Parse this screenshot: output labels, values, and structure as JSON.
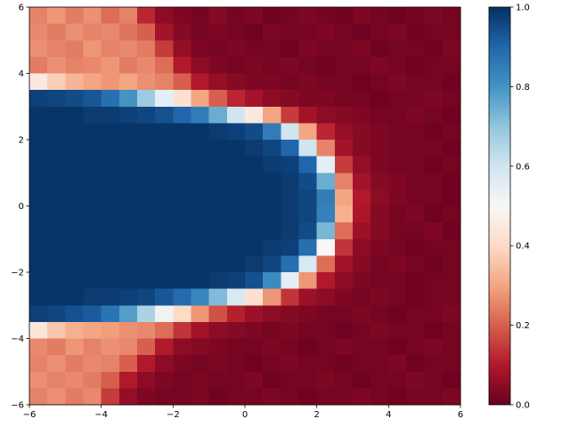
{
  "chart_data": {
    "type": "heatmap",
    "xlim": [
      -6,
      6
    ],
    "ylim": [
      -6,
      6
    ],
    "xticks": [
      {
        "value": -6,
        "label": "−6"
      },
      {
        "value": -4,
        "label": "−4"
      },
      {
        "value": -2,
        "label": "−2"
      },
      0,
      2,
      4,
      6
    ],
    "yticks": [
      {
        "value": -6,
        "label": "−6"
      },
      {
        "value": -4,
        "label": "−4"
      },
      {
        "value": -2,
        "label": "−2"
      },
      0,
      2,
      4,
      6
    ],
    "colorbar_lim": [
      0,
      1
    ],
    "colorbar_ticks": [
      {
        "value": 0,
        "label": "0.0"
      },
      0.2,
      0.4,
      0.6,
      0.8,
      {
        "value": 1,
        "label": "1.0"
      }
    ],
    "colormap": [
      "#67001f",
      "#b2182b",
      "#d6604d",
      "#f4a582",
      "#fddbc7",
      "#f7f7f7",
      "#d1e5f0",
      "#92c5de",
      "#4393c3",
      "#2166ac",
      "#053061"
    ],
    "x": [
      -5.75,
      -5.25,
      -4.75,
      -4.25,
      -3.75,
      -3.25,
      -2.75,
      -2.25,
      -1.75,
      -1.25,
      -0.75,
      -0.25,
      0.25,
      0.75,
      1.25,
      1.75,
      2.25,
      2.75,
      3.25,
      3.75,
      4.25,
      4.75,
      5.25,
      5.75
    ],
    "y": [
      5.75,
      5.25,
      4.75,
      4.25,
      3.75,
      3.25,
      2.75,
      2.25,
      1.75,
      1.25,
      0.75,
      0.25,
      -0.25,
      -0.75,
      -1.25,
      -1.75,
      -2.25,
      -2.75,
      -3.25,
      -3.75,
      -4.25,
      -4.75,
      -5.25,
      -5.75
    ],
    "values": [
      [
        0.25,
        0.28,
        0.24,
        0.27,
        0.22,
        0.25,
        0.12,
        0.05,
        0.03,
        0.02,
        0.04,
        0.02,
        0.03,
        0.01,
        0.02,
        0.03,
        0.02,
        0.01,
        0.03,
        0.02,
        0.01,
        0.02,
        0.03,
        0.02
      ],
      [
        0.26,
        0.24,
        0.27,
        0.25,
        0.26,
        0.23,
        0.2,
        0.08,
        0.04,
        0.02,
        0.03,
        0.02,
        0.01,
        0.03,
        0.02,
        0.02,
        0.03,
        0.02,
        0.01,
        0.02,
        0.03,
        0.01,
        0.02,
        0.02
      ],
      [
        0.27,
        0.25,
        0.24,
        0.28,
        0.25,
        0.26,
        0.24,
        0.15,
        0.06,
        0.03,
        0.02,
        0.03,
        0.02,
        0.02,
        0.01,
        0.03,
        0.02,
        0.02,
        0.03,
        0.01,
        0.02,
        0.02,
        0.01,
        0.03
      ],
      [
        0.24,
        0.27,
        0.25,
        0.26,
        0.28,
        0.24,
        0.26,
        0.22,
        0.1,
        0.05,
        0.03,
        0.02,
        0.03,
        0.02,
        0.03,
        0.02,
        0.01,
        0.02,
        0.02,
        0.03,
        0.02,
        0.01,
        0.02,
        0.02
      ],
      [
        0.45,
        0.38,
        0.33,
        0.3,
        0.28,
        0.3,
        0.27,
        0.25,
        0.2,
        0.1,
        0.06,
        0.04,
        0.03,
        0.03,
        0.02,
        0.03,
        0.02,
        0.02,
        0.01,
        0.02,
        0.03,
        0.02,
        0.02,
        0.01
      ],
      [
        0.97,
        0.96,
        0.95,
        0.93,
        0.88,
        0.8,
        0.68,
        0.55,
        0.42,
        0.3,
        0.2,
        0.12,
        0.08,
        0.05,
        0.04,
        0.03,
        0.03,
        0.02,
        0.02,
        0.01,
        0.02,
        0.02,
        0.03,
        0.02
      ],
      [
        0.99,
        0.99,
        0.99,
        0.98,
        0.98,
        0.97,
        0.96,
        0.94,
        0.9,
        0.85,
        0.75,
        0.6,
        0.45,
        0.3,
        0.15,
        0.08,
        0.05,
        0.04,
        0.03,
        0.02,
        0.02,
        0.03,
        0.02,
        0.01
      ],
      [
        0.99,
        0.99,
        0.99,
        0.99,
        0.99,
        0.99,
        0.99,
        0.99,
        0.99,
        0.99,
        0.98,
        0.97,
        0.95,
        0.85,
        0.6,
        0.3,
        0.12,
        0.06,
        0.04,
        0.03,
        0.02,
        0.02,
        0.01,
        0.02
      ],
      [
        0.99,
        0.99,
        0.99,
        0.99,
        0.99,
        0.99,
        0.99,
        0.99,
        0.99,
        0.99,
        0.99,
        0.99,
        0.98,
        0.96,
        0.9,
        0.6,
        0.25,
        0.08,
        0.04,
        0.03,
        0.02,
        0.02,
        0.02,
        0.01
      ],
      [
        0.99,
        0.99,
        0.99,
        0.99,
        0.99,
        0.99,
        0.99,
        0.99,
        0.99,
        0.99,
        0.99,
        0.99,
        0.99,
        0.98,
        0.97,
        0.9,
        0.55,
        0.15,
        0.06,
        0.03,
        0.02,
        0.02,
        0.01,
        0.02
      ],
      [
        0.99,
        0.99,
        0.99,
        0.99,
        0.99,
        0.99,
        0.99,
        0.99,
        0.99,
        0.99,
        0.99,
        0.99,
        0.99,
        0.99,
        0.98,
        0.95,
        0.75,
        0.25,
        0.08,
        0.04,
        0.03,
        0.02,
        0.02,
        0.01
      ],
      [
        0.99,
        0.99,
        0.99,
        0.99,
        0.99,
        0.99,
        0.99,
        0.99,
        0.99,
        0.99,
        0.99,
        0.99,
        0.99,
        0.99,
        0.98,
        0.96,
        0.85,
        0.3,
        0.1,
        0.05,
        0.03,
        0.02,
        0.02,
        0.01
      ],
      [
        0.99,
        0.99,
        0.99,
        0.99,
        0.99,
        0.99,
        0.99,
        0.99,
        0.99,
        0.99,
        0.99,
        0.99,
        0.99,
        0.99,
        0.98,
        0.96,
        0.84,
        0.32,
        0.09,
        0.04,
        0.02,
        0.03,
        0.01,
        0.02
      ],
      [
        0.99,
        0.99,
        0.99,
        0.99,
        0.99,
        0.99,
        0.99,
        0.99,
        0.99,
        0.99,
        0.99,
        0.99,
        0.99,
        0.99,
        0.98,
        0.95,
        0.73,
        0.22,
        0.07,
        0.04,
        0.02,
        0.02,
        0.03,
        0.01
      ],
      [
        0.99,
        0.99,
        0.99,
        0.99,
        0.99,
        0.99,
        0.99,
        0.99,
        0.99,
        0.99,
        0.99,
        0.99,
        0.99,
        0.98,
        0.97,
        0.88,
        0.5,
        0.14,
        0.05,
        0.03,
        0.02,
        0.01,
        0.02,
        0.02
      ],
      [
        0.99,
        0.99,
        0.99,
        0.99,
        0.99,
        0.99,
        0.99,
        0.99,
        0.99,
        0.99,
        0.99,
        0.99,
        0.98,
        0.96,
        0.88,
        0.58,
        0.22,
        0.08,
        0.04,
        0.02,
        0.03,
        0.02,
        0.01,
        0.02
      ],
      [
        0.99,
        0.99,
        0.99,
        0.99,
        0.99,
        0.99,
        0.99,
        0.99,
        0.99,
        0.99,
        0.98,
        0.97,
        0.94,
        0.82,
        0.55,
        0.28,
        0.1,
        0.05,
        0.03,
        0.02,
        0.02,
        0.01,
        0.02,
        0.02
      ],
      [
        0.99,
        0.99,
        0.99,
        0.98,
        0.98,
        0.97,
        0.96,
        0.93,
        0.89,
        0.83,
        0.72,
        0.58,
        0.42,
        0.28,
        0.14,
        0.07,
        0.05,
        0.03,
        0.02,
        0.03,
        0.02,
        0.01,
        0.02,
        0.02
      ],
      [
        0.97,
        0.96,
        0.94,
        0.92,
        0.87,
        0.78,
        0.66,
        0.52,
        0.4,
        0.28,
        0.18,
        0.11,
        0.07,
        0.05,
        0.04,
        0.03,
        0.02,
        0.02,
        0.03,
        0.02,
        0.01,
        0.02,
        0.02,
        0.03
      ],
      [
        0.44,
        0.36,
        0.32,
        0.3,
        0.29,
        0.27,
        0.26,
        0.22,
        0.14,
        0.08,
        0.05,
        0.04,
        0.03,
        0.02,
        0.03,
        0.02,
        0.02,
        0.01,
        0.02,
        0.03,
        0.02,
        0.02,
        0.01,
        0.02
      ],
      [
        0.26,
        0.24,
        0.28,
        0.25,
        0.27,
        0.26,
        0.2,
        0.1,
        0.05,
        0.04,
        0.03,
        0.02,
        0.02,
        0.03,
        0.02,
        0.01,
        0.02,
        0.03,
        0.02,
        0.02,
        0.01,
        0.02,
        0.03,
        0.02
      ],
      [
        0.25,
        0.27,
        0.24,
        0.26,
        0.25,
        0.2,
        0.1,
        0.05,
        0.03,
        0.02,
        0.03,
        0.02,
        0.01,
        0.02,
        0.03,
        0.02,
        0.02,
        0.01,
        0.02,
        0.02,
        0.03,
        0.01,
        0.02,
        0.02
      ],
      [
        0.27,
        0.25,
        0.26,
        0.24,
        0.2,
        0.1,
        0.05,
        0.03,
        0.02,
        0.03,
        0.02,
        0.02,
        0.03,
        0.01,
        0.02,
        0.02,
        0.03,
        0.02,
        0.01,
        0.02,
        0.02,
        0.03,
        0.02,
        0.01
      ],
      [
        0.25,
        0.27,
        0.24,
        0.26,
        0.15,
        0.06,
        0.03,
        0.02,
        0.02,
        0.03,
        0.01,
        0.02,
        0.02,
        0.03,
        0.02,
        0.01,
        0.02,
        0.02,
        0.03,
        0.02,
        0.01,
        0.02,
        0.02,
        0.03
      ]
    ]
  }
}
